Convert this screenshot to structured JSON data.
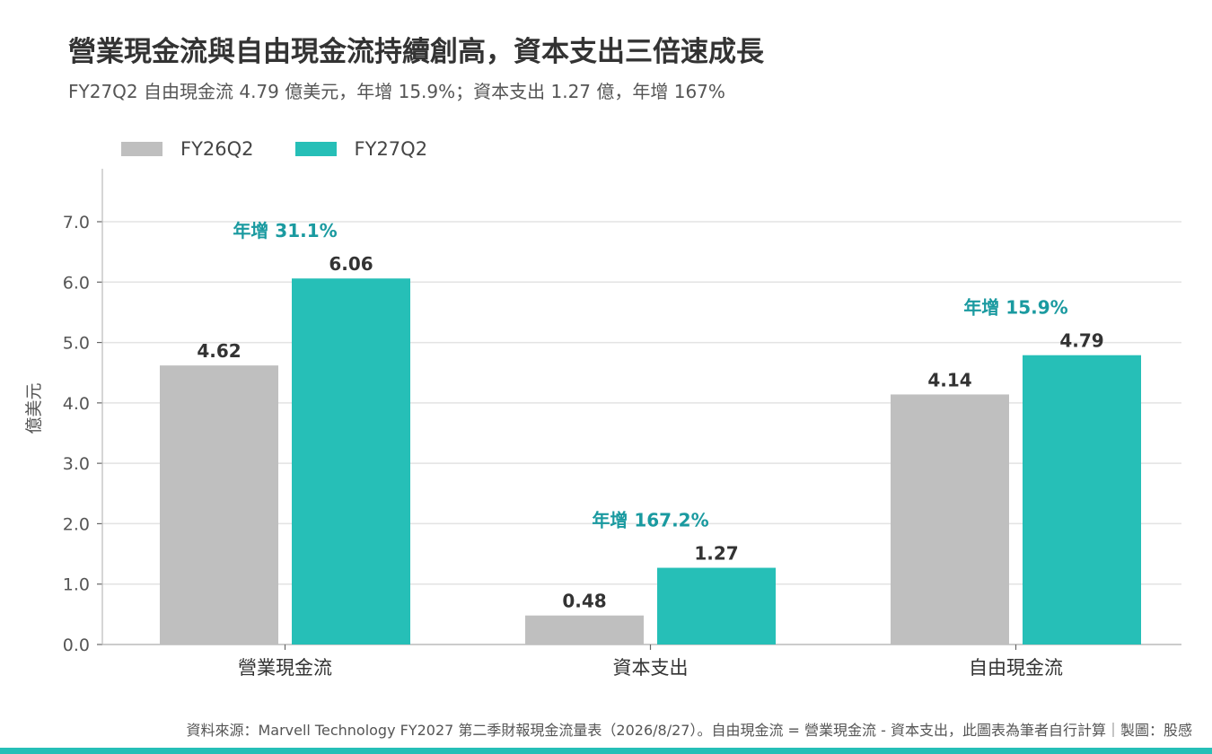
{
  "title": "營業現金流與自由現金流持續創高，資本支出三倍速成長",
  "subtitle": "FY27Q2 自由現金流 4.79 億美元，年增 15.9%；資本支出 1.27 億，年增 167%",
  "footer": "資料來源：Marvell Technology FY2027 第二季財報現金流量表（2026/8/27）。自由現金流 = 營業現金流 - 資本支出，此圖表為筆者自行計算｜製圖：股感",
  "colors": {
    "fy26": "#bfbfbf",
    "fy27": "#26bfb7",
    "annotation": "#1a9aa0",
    "value_label": "#333333",
    "bottom_bar": "#26bfb7"
  },
  "chart_data": {
    "type": "bar",
    "categories": [
      "營業現金流",
      "資本支出",
      "自由現金流"
    ],
    "series": [
      {
        "name": "FY26Q2",
        "values": [
          4.62,
          0.48,
          4.14
        ]
      },
      {
        "name": "FY27Q2",
        "values": [
          6.06,
          1.27,
          4.79
        ]
      }
    ],
    "value_labels": [
      [
        "4.62",
        "0.48",
        "4.14"
      ],
      [
        "6.06",
        "1.27",
        "4.79"
      ]
    ],
    "annotations": [
      "年增 31.1%",
      "年增 167.2%",
      "年增 15.9%"
    ],
    "ylabel": "億美元",
    "ylim": [
      0,
      7.0
    ],
    "yticks": [
      0,
      1,
      2,
      3,
      4,
      5,
      6,
      7
    ],
    "ytick_labels": [
      "0.0",
      "1.0",
      "2.0",
      "3.0",
      "4.0",
      "5.0",
      "6.0",
      "7.0"
    ],
    "grid": true,
    "legend_position": "top-left"
  }
}
